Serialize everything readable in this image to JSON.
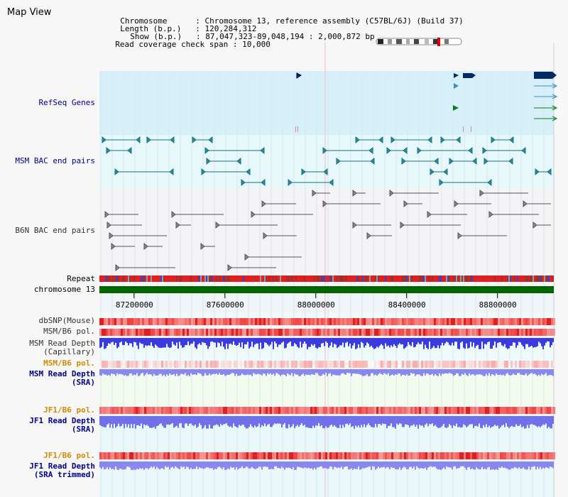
{
  "app": {
    "title": "Map View"
  },
  "header": {
    "chromosome_key": "Chromosome",
    "chromosome_val": "Chromosome 13, reference assembly (C57BL/6J) (Build 37)",
    "length_key": "Length (b.p.)",
    "length_val": "120,284,312",
    "show_key": "Show (b.p.)",
    "show_val": "87,047,323-89,048,194 : 2,000,872 bp",
    "coverage_key": "Read coverage check span",
    "coverage_val": "10,000"
  },
  "tracks": {
    "refseq": "RefSeq Genes",
    "msm_bac": "MSM BAC end pairs",
    "b6n_bac": "B6N BAC end pairs",
    "repeat": "Repeat",
    "chromosome": "chromosome 13",
    "dbsnp": "dbSNP(Mouse)",
    "msm_pol": "MSM/B6 pol.",
    "msm_depth_cap_1": "MSM Read Depth",
    "msm_depth_cap_2": "(Capillary)",
    "msm_pol2": "MSM/B6 pol.",
    "msm_depth_sra_1": "MSM Read Depth",
    "msm_depth_sra_2": "(SRA)",
    "jf1_pol": "JF1/B6 pol.",
    "jf1_depth_sra_1": "JF1 Read Depth",
    "jf1_depth_sra_2": "(SRA)",
    "jf1_pol2": "JF1/B6 pol.",
    "jf1_depth_trim_1": "JF1 Read Depth",
    "jf1_depth_trim_2": "(SRA trimmed)"
  },
  "axis": {
    "ticks": [
      "87200000",
      "87600000",
      "88000000",
      "88400000",
      "88800000"
    ],
    "tick_values": [
      87200000,
      87600000,
      88000000,
      88400000,
      88800000
    ],
    "view_start": 87047323,
    "view_end": 89048194
  },
  "colors": {
    "label_blue": "#00008b",
    "label_orange": "#d68a00",
    "refseq_bg": "#d6f0fa",
    "bac_bg": "#e6f8fa",
    "chromosome_bar": "#006400",
    "depth_blue": "#3a3adf",
    "depth_light": "#8888ee"
  }
}
